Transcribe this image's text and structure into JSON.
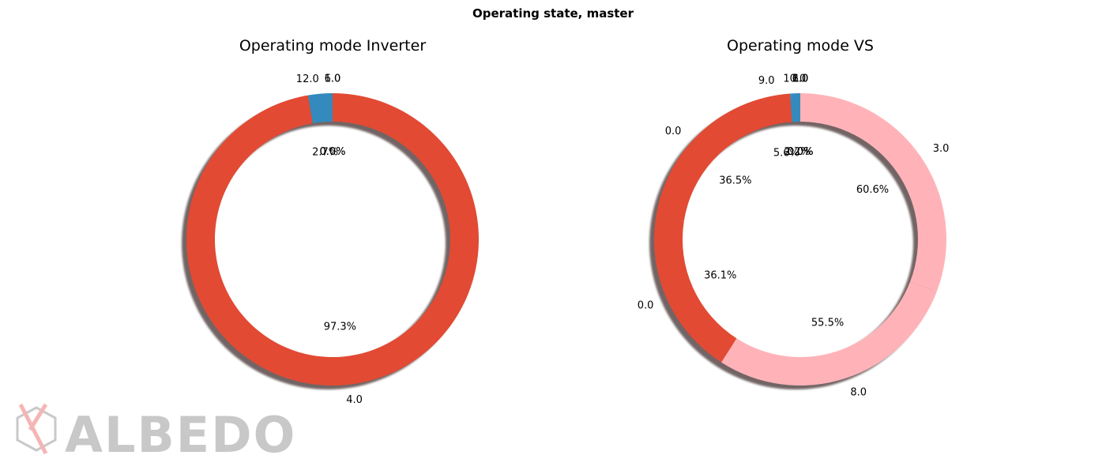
{
  "figure": {
    "suptitle": "Operating state, master"
  },
  "logo": {
    "text": "ALBEDO"
  },
  "colors": {
    "red": "#E24A33",
    "blue": "#348ABD",
    "pink": "#FFB3B8",
    "shadow": "#5a4a48"
  },
  "chart_data": [
    {
      "type": "pie",
      "donut": true,
      "title": "Operating mode Inverter",
      "labels": [
        "1.0",
        "6.0",
        "12.0",
        "4.0"
      ],
      "values": [
        0.0,
        0.0,
        2.7,
        97.3
      ],
      "percent_labels": [
        "0.0%",
        "0.0%",
        "2.7%",
        "97.3%"
      ],
      "colors": [
        "#E24A33",
        "#E24A33",
        "#348ABD",
        "#E24A33"
      ]
    },
    {
      "type": "pie",
      "donut": true,
      "title": "Operating mode VS",
      "labels": [
        "6.0",
        "1.0",
        "2.0",
        "10.0",
        "9.0",
        "0.0",
        "0.0",
        "8.0",
        "3.0"
      ],
      "values": [
        0.0,
        0.0,
        0.0,
        2.2,
        5.6,
        36.5,
        36.1,
        55.5,
        60.6
      ],
      "percent_labels": [
        "0.0%",
        "0.0%",
        "0.0%",
        "2.2%",
        "5.6%",
        "36.5%",
        "36.1%",
        "55.5%",
        "60.6%"
      ],
      "colors": [
        "#E24A33",
        "#E24A33",
        "#E24A33",
        "#348ABD",
        "#E24A33",
        "#E24A33",
        "#E24A33",
        "#FFB3B8",
        "#FFB3B8"
      ]
    }
  ]
}
